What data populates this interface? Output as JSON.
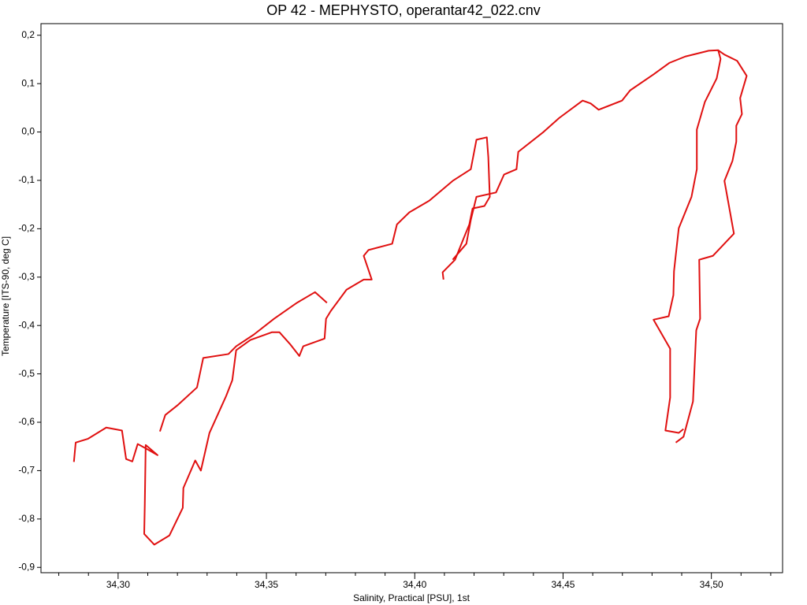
{
  "chart_data": {
    "type": "line",
    "title": "OP 42 - MEPHYSTO, operantar42_022.cnv",
    "xlabel": "Salinity, Practical [PSU], 1st",
    "ylabel": "Temperature [ITS-90, deg C]",
    "xaxis_color": "#c8202c",
    "color": "#e01010",
    "xlim": [
      34.274,
      34.524
    ],
    "ylim": [
      -0.911,
      0.224
    ],
    "xticks": [
      {
        "value": 34.3,
        "label": "34,30"
      },
      {
        "value": 34.35,
        "label": "34,35"
      },
      {
        "value": 34.4,
        "label": "34,40"
      },
      {
        "value": 34.45,
        "label": "34,45"
      },
      {
        "value": 34.5,
        "label": "34,50"
      }
    ],
    "xminorticks": [
      34.28,
      34.29,
      34.31,
      34.32,
      34.33,
      34.34,
      34.36,
      34.37,
      34.38,
      34.39,
      34.41,
      34.42,
      34.43,
      34.44,
      34.46,
      34.47,
      34.48,
      34.49,
      34.51,
      34.52
    ],
    "yticks": [
      {
        "value": 0.2,
        "label": "0,2"
      },
      {
        "value": 0.1,
        "label": "0,1"
      },
      {
        "value": 0,
        "label": "0,0"
      },
      {
        "value": -0.1,
        "label": "-0,1"
      },
      {
        "value": -0.2,
        "label": "-0,2"
      },
      {
        "value": -0.3,
        "label": "-0,3"
      },
      {
        "value": -0.4,
        "label": "-0,4"
      },
      {
        "value": -0.5,
        "label": "-0,5"
      },
      {
        "value": -0.6,
        "label": "-0,6"
      },
      {
        "value": -0.7,
        "label": "-0,7"
      },
      {
        "value": -0.8,
        "label": "-0,8"
      },
      {
        "value": -0.9,
        "label": "-0,9"
      }
    ],
    "x": [
      34.2851,
      34.2857,
      34.2899,
      34.296,
      34.3013,
      34.3027,
      34.3048,
      34.3066,
      34.3096,
      34.3133,
      34.3093,
      34.309,
      34.3088,
      34.3122,
      34.3173,
      34.3218,
      34.322,
      34.326,
      34.3279,
      34.3308,
      34.3364,
      34.3385,
      34.3398,
      34.3446,
      34.3518,
      34.3544,
      34.3579,
      34.3611,
      34.3624,
      34.3696,
      34.3701,
      34.3717,
      34.377,
      34.3828,
      34.3855,
      34.3828,
      34.3844,
      34.3924,
      34.394,
      34.3982,
      34.4049,
      34.4128,
      34.4189,
      34.4208,
      34.4243,
      34.4248,
      34.4253,
      34.4235,
      34.4195,
      34.4184,
      34.4168,
      34.4136,
      34.4094,
      34.4097,
      null,
      34.3141,
      34.3159,
      34.3202,
      34.3266,
      34.3287,
      34.3372,
      34.3398,
      34.3457,
      34.3526,
      34.3603,
      34.3664,
      34.3704,
      null,
      34.4128,
      34.4174,
      34.4189,
      34.4208,
      34.4274,
      34.4301,
      34.4343,
      34.4349,
      34.4434,
      34.4487,
      34.4566,
      34.4593,
      34.462,
      34.4699,
      34.4726,
      34.4805,
      34.4859,
      34.4912,
      34.4991,
      34.5023,
      34.5031,
      34.5018,
      34.4978,
      34.4951,
      34.4951,
      34.4933,
      34.489,
      34.4874,
      34.4872,
      34.4856,
      34.4805,
      34.4861,
      34.4861,
      34.4845,
      34.489,
      34.4906,
      null,
      34.5023,
      34.5044,
      34.5087,
      34.5119,
      34.5097,
      34.5103,
      34.5084,
      34.5084,
      34.5071,
      34.5044,
      34.5076,
      34.5005,
      34.4959,
      34.4962,
      34.4949,
      34.4938,
      34.4906,
      34.488
    ],
    "values": [
      -0.682,
      -0.642,
      -0.634,
      -0.611,
      -0.617,
      -0.676,
      -0.681,
      -0.645,
      -0.655,
      -0.668,
      -0.647,
      -0.769,
      -0.831,
      -0.853,
      -0.834,
      -0.777,
      -0.736,
      -0.679,
      -0.7,
      -0.622,
      -0.546,
      -0.513,
      -0.451,
      -0.43,
      -0.414,
      -0.414,
      -0.438,
      -0.463,
      -0.443,
      -0.427,
      -0.386,
      -0.37,
      -0.326,
      -0.305,
      -0.305,
      -0.256,
      -0.244,
      -0.231,
      -0.191,
      -0.166,
      -0.142,
      -0.101,
      -0.077,
      -0.016,
      -0.011,
      -0.052,
      -0.134,
      -0.153,
      -0.158,
      -0.191,
      -0.215,
      -0.264,
      -0.29,
      -0.305,
      null,
      -0.619,
      -0.585,
      -0.564,
      -0.528,
      -0.467,
      -0.459,
      -0.443,
      -0.419,
      -0.386,
      -0.353,
      -0.331,
      -0.353,
      null,
      -0.264,
      -0.231,
      -0.182,
      -0.134,
      -0.125,
      -0.088,
      -0.077,
      -0.041,
      0.0,
      0.029,
      0.065,
      0.059,
      0.046,
      0.065,
      0.086,
      0.119,
      0.143,
      0.156,
      0.168,
      0.169,
      0.151,
      0.111,
      0.062,
      0.005,
      -0.077,
      -0.134,
      -0.199,
      -0.288,
      -0.337,
      -0.381,
      -0.388,
      -0.448,
      -0.549,
      -0.617,
      -0.622,
      -0.614,
      null,
      0.169,
      0.16,
      0.147,
      0.116,
      0.07,
      0.037,
      0.013,
      -0.02,
      -0.06,
      -0.101,
      -0.21,
      -0.256,
      -0.264,
      -0.386,
      -0.41,
      -0.557,
      -0.63,
      -0.642
    ]
  }
}
